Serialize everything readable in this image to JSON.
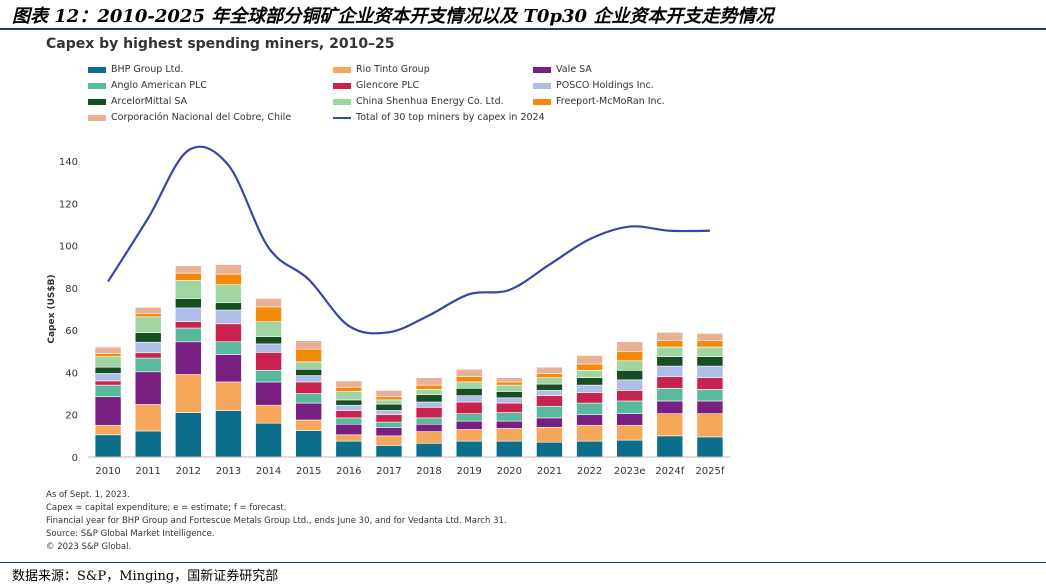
{
  "figure_title": "图表 12：2010-2025 年全球部分铜矿企业资本开支情况以及 T0p30 企业资本开支走势情况",
  "source_text": "数据来源：S&P，Minging，国新证券研究部",
  "notes": [
    "As of Sept. 1, 2023.",
    "Capex = capital expenditure; e = estimate; f = forecast.",
    "Financial year for BHP Group and Fortescue Metals Group Ltd., ends June 30, and for Vedanta Ltd. March 31.",
    "Source: S&P Global Market Intelligence.",
    "© 2023 S&P Global."
  ],
  "chart_data": {
    "type": "bar",
    "stacked": true,
    "title": "Capex by highest spending miners, 2010–25",
    "xlabel": "",
    "ylabel": "Capex (US$B)",
    "ylim": [
      0,
      150
    ],
    "yticks": [
      0,
      20,
      40,
      60,
      80,
      100,
      120,
      140
    ],
    "categories": [
      "2010",
      "2011",
      "2012",
      "2013",
      "2014",
      "2015",
      "2016",
      "2017",
      "2018",
      "2019",
      "2020",
      "2021",
      "2022",
      "2023e",
      "2024f",
      "2025f"
    ],
    "series": [
      {
        "name": "BHP Group Ltd.",
        "color": "#0d6e8c",
        "values": [
          10.5,
          12.3,
          21,
          22,
          16,
          12.5,
          7.5,
          5.5,
          6.5,
          7.5,
          7.5,
          7,
          7.5,
          8,
          10,
          9.5
        ]
      },
      {
        "name": "Rio Tinto Group",
        "color": "#f5a85a",
        "values": [
          4.5,
          12.5,
          18,
          13.5,
          8.5,
          5,
          3,
          4.5,
          5.5,
          5.5,
          6,
          7,
          7.5,
          7,
          10.5,
          11
        ]
      },
      {
        "name": "Vale SA",
        "color": "#7a1f82",
        "values": [
          13.5,
          15.5,
          15.5,
          13,
          11,
          8,
          5,
          4,
          3.5,
          4,
          3.5,
          4.5,
          5,
          5.5,
          6,
          6
        ]
      },
      {
        "name": "Anglo American PLC",
        "color": "#58b99c",
        "values": [
          5.5,
          6.5,
          6.5,
          6,
          5.5,
          4.5,
          3,
          2.5,
          3,
          3.5,
          4,
          5.5,
          5.5,
          6,
          6,
          5.5
        ]
      },
      {
        "name": "Glencore PLC",
        "color": "#c8224f",
        "values": [
          2,
          2.5,
          3,
          8.5,
          8.5,
          5.5,
          3.5,
          3.5,
          5,
          5.5,
          4.5,
          5,
          5,
          5,
          5.5,
          5.5
        ]
      },
      {
        "name": "POSCO Holdings Inc.",
        "color": "#aebee8",
        "values": [
          3.5,
          5,
          6.5,
          6.5,
          4,
          3,
          2.5,
          2,
          2.5,
          3,
          2.5,
          2.5,
          3.5,
          5,
          5,
          5.5
        ]
      },
      {
        "name": "ArcelorMittal SA",
        "color": "#174d23",
        "values": [
          3,
          4.5,
          4.5,
          3.5,
          3.5,
          3,
          2.5,
          3,
          3.5,
          3.5,
          3,
          3,
          3.5,
          4.5,
          4.5,
          4.5
        ]
      },
      {
        "name": "China Shenhua Energy Co. Ltd.",
        "color": "#9fd5a2",
        "values": [
          5,
          7.5,
          8.5,
          8.5,
          7,
          3.5,
          4,
          2,
          2.5,
          3,
          3,
          3,
          3.5,
          4.5,
          4.5,
          4.5
        ]
      },
      {
        "name": "Freeport-McMoRan Inc.",
        "color": "#f58a0a",
        "values": [
          1.5,
          1.5,
          3.5,
          5,
          7,
          6,
          2,
          1.5,
          2,
          2.5,
          1.5,
          2,
          3,
          4.5,
          3,
          3
        ]
      },
      {
        "name": "Corporación Nacional del Cobre, Chile",
        "color": "#eab095",
        "values": [
          3,
          3,
          3.5,
          4.5,
          4,
          4,
          3,
          3,
          3.5,
          3.5,
          2,
          3,
          4,
          4.5,
          4,
          3.5
        ]
      }
    ],
    "line_series": {
      "name": "Total of 30 top miners by capex in 2024",
      "color": "#3747a6",
      "values": [
        83,
        113,
        145,
        138,
        99,
        84,
        62,
        59,
        67,
        77,
        79,
        91,
        103,
        109,
        107,
        107
      ]
    }
  }
}
